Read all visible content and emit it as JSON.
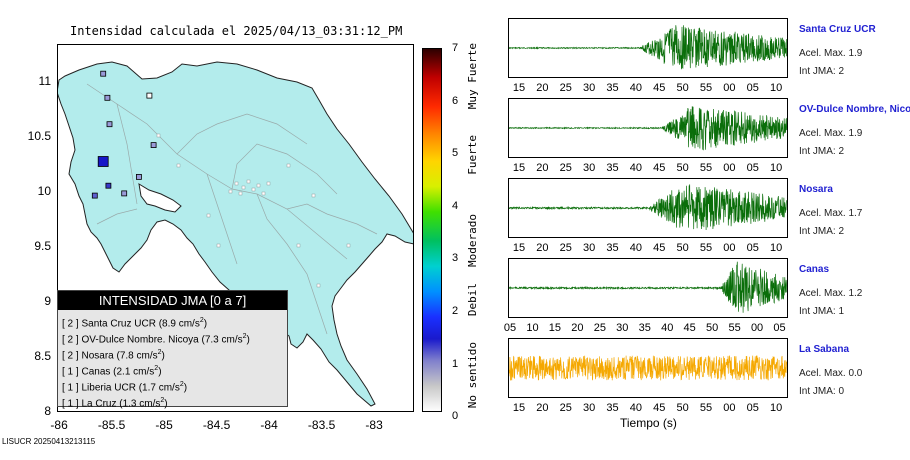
{
  "map": {
    "title": "Intensidad calculada el 2025/04/13_03:31:12_PM",
    "y_ticks": [
      "11",
      "10.5",
      "10",
      "9.5",
      "9",
      "8.5",
      "8"
    ],
    "x_ticks": [
      "-86",
      "-85.5",
      "-85",
      "-84.5",
      "-84",
      "-83.5",
      "-83"
    ],
    "land_color": "#b3ecec",
    "sea_color": "#ffffff",
    "stations": [
      {
        "lon": -85.58,
        "lat": 10.28,
        "intensity": 2,
        "color": "#1616c8",
        "size": "large"
      },
      {
        "lon": -85.53,
        "lat": 10.06,
        "intensity": 1,
        "color": "#3838c8",
        "size": "small"
      },
      {
        "lon": -85.66,
        "lat": 9.97,
        "intensity": 1,
        "color": "#6060d0",
        "size": "small"
      },
      {
        "lon": -85.58,
        "lat": 11.08,
        "intensity": 0,
        "color": "#9a9ad8",
        "size": "small"
      },
      {
        "lon": -85.54,
        "lat": 10.86,
        "intensity": 0,
        "color": "#9a9ad8",
        "size": "small"
      },
      {
        "lon": -85.52,
        "lat": 10.62,
        "intensity": 0,
        "color": "#9a9ad8",
        "size": "small"
      },
      {
        "lon": -85.1,
        "lat": 10.43,
        "intensity": 0,
        "color": "#9a9ad8",
        "size": "small"
      },
      {
        "lon": -85.24,
        "lat": 10.14,
        "intensity": 0,
        "color": "#9a9ad8",
        "size": "small"
      },
      {
        "lon": -85.38,
        "lat": 9.99,
        "intensity": 0,
        "color": "#9a9ad8",
        "size": "small"
      },
      {
        "lon": -85.14,
        "lat": 10.88,
        "intensity": 0,
        "color": "#ffffff",
        "size": "small"
      }
    ]
  },
  "legend": {
    "title": "INTENSIDAD JMA [0 a 7]",
    "items": [
      {
        "level": "[ 2 ]",
        "name": "Santa Cruz UCR",
        "value": "(8.9 cm/s",
        "exp": "2",
        "close": ")"
      },
      {
        "level": "[ 2 ]",
        "name": "OV-Dulce Nombre. Nicoya",
        "value": "(7.3 cm/s",
        "exp": "2",
        "close": ")"
      },
      {
        "level": "[ 2 ]",
        "name": "Nosara",
        "value": "(7.8 cm/s",
        "exp": "2",
        "close": ")"
      },
      {
        "level": "[ 1 ]",
        "name": "Canas",
        "value": "(2.1 cm/s",
        "exp": "2",
        "close": ")"
      },
      {
        "level": "[ 1 ]",
        "name": "Liberia UCR",
        "value": "(1.7 cm/s",
        "exp": "2",
        "close": ")"
      },
      {
        "level": "[ 1 ]",
        "name": "La Cruz",
        "value": "(1.3 cm/s",
        "exp": "2",
        "close": ")"
      }
    ]
  },
  "colorbar": {
    "numbers": [
      "7",
      "6",
      "5",
      "4",
      "3",
      "2",
      "1",
      "0"
    ],
    "labels": [
      "Muy Fuerte",
      "Fuerte",
      "Moderado",
      "Debil",
      "No sentido"
    ]
  },
  "footer": "LISUCR 20250413213115",
  "waveforms": {
    "x_axis_label": "Tiempo (s)",
    "panels": [
      {
        "station": "Santa Cruz UCR",
        "accel": "Acel. Max. 1.9",
        "jma": "Int JMA: 2",
        "color": "#0a6e0a",
        "onset": 0.47,
        "noise": 0.02,
        "amp": 0.85,
        "ticks": [
          "15",
          "20",
          "25",
          "30",
          "35",
          "40",
          "45",
          "50",
          "55",
          "00",
          "05",
          "10"
        ],
        "tick_start": 15,
        "tick_step": 5
      },
      {
        "station": "OV-Dulce Nombre, Nicoya",
        "accel": "Acel. Max. 1.9",
        "jma": "Int JMA: 2",
        "color": "#0a6e0a",
        "onset": 0.55,
        "noise": 0.02,
        "amp": 0.85,
        "ticks": [
          "15",
          "20",
          "25",
          "30",
          "35",
          "40",
          "45",
          "50",
          "55",
          "00",
          "05",
          "10"
        ],
        "tick_start": 15,
        "tick_step": 5
      },
      {
        "station": "Nosara",
        "accel": "Acel. Max. 1.7",
        "jma": "Int JMA: 2",
        "color": "#0a6e0a",
        "onset": 0.5,
        "noise": 0.03,
        "amp": 0.9,
        "ticks": [
          "15",
          "20",
          "25",
          "30",
          "35",
          "40",
          "45",
          "50",
          "55",
          "00",
          "05",
          "10"
        ],
        "tick_start": 15,
        "tick_step": 5
      },
      {
        "station": "Canas",
        "accel": "Acel. Max. 1.2",
        "jma": "Int JMA: 1",
        "color": "#0a6e0a",
        "onset": 0.76,
        "noise": 0.03,
        "amp": 0.95,
        "ticks": [
          "05",
          "10",
          "15",
          "20",
          "25",
          "30",
          "35",
          "40",
          "45",
          "50",
          "55",
          "00",
          "05"
        ],
        "tick_start": 5,
        "tick_step": 5
      },
      {
        "station": "La Sabana",
        "accel": "Acel. Max. 0.0",
        "jma": "Int JMA: 0",
        "color": "#f5a800",
        "onset": 0.0,
        "noise": 0.45,
        "amp": 0.45,
        "ticks": [
          "15",
          "20",
          "25",
          "30",
          "35",
          "40",
          "45",
          "50",
          "55",
          "00",
          "05",
          "10"
        ],
        "tick_start": 15,
        "tick_step": 5
      }
    ]
  }
}
